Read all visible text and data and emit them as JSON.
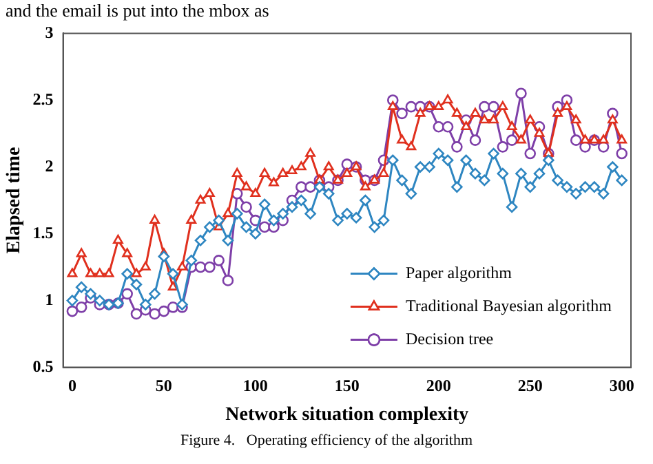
{
  "chart_data": {
    "type": "line",
    "xlabel": "Network situation complexity",
    "ylabel": "Elapsed time",
    "annotations": [
      "and the email is put into the mbox as",
      "Figure 4.   Operating efficiency of the algorithm"
    ],
    "x": [
      0,
      5,
      10,
      15,
      20,
      25,
      30,
      35,
      40,
      45,
      50,
      55,
      60,
      65,
      70,
      75,
      80,
      85,
      90,
      95,
      100,
      105,
      110,
      115,
      120,
      125,
      130,
      135,
      140,
      145,
      150,
      155,
      160,
      165,
      170,
      175,
      180,
      185,
      190,
      195,
      200,
      205,
      210,
      215,
      220,
      225,
      230,
      235,
      240,
      245,
      250,
      255,
      260,
      265,
      270,
      275,
      280,
      285,
      290,
      295,
      300
    ],
    "series": [
      {
        "name": "Paper algorithm",
        "color": "#2e86c1",
        "marker": "diamond",
        "values": [
          1.0,
          1.1,
          1.05,
          1.0,
          0.97,
          0.98,
          1.2,
          1.12,
          0.97,
          1.05,
          1.33,
          1.2,
          0.97,
          1.3,
          1.45,
          1.55,
          1.6,
          1.45,
          1.65,
          1.55,
          1.5,
          1.72,
          1.6,
          1.65,
          1.7,
          1.75,
          1.65,
          1.85,
          1.8,
          1.6,
          1.65,
          1.62,
          1.75,
          1.55,
          1.6,
          2.05,
          1.9,
          1.8,
          2.0,
          2.0,
          2.1,
          2.05,
          1.85,
          2.05,
          1.95,
          1.9,
          2.1,
          1.95,
          1.7,
          1.95,
          1.85,
          1.95,
          2.05,
          1.9,
          1.85,
          1.8,
          1.85,
          1.85,
          1.8,
          2.0,
          1.9
        ]
      },
      {
        "name": "Traditional Bayesian algorithm",
        "color": "#e0301e",
        "marker": "triangle",
        "values": [
          1.2,
          1.35,
          1.2,
          1.2,
          1.2,
          1.45,
          1.35,
          1.2,
          1.25,
          1.6,
          1.35,
          1.1,
          1.25,
          1.6,
          1.75,
          1.8,
          1.55,
          1.65,
          1.95,
          1.85,
          1.8,
          1.95,
          1.88,
          1.95,
          1.97,
          2.0,
          2.1,
          1.9,
          2.0,
          1.9,
          1.95,
          2.0,
          1.85,
          1.9,
          1.95,
          2.45,
          2.2,
          2.15,
          2.4,
          2.45,
          2.45,
          2.5,
          2.4,
          2.3,
          2.4,
          2.35,
          2.35,
          2.45,
          2.3,
          2.2,
          2.35,
          2.25,
          2.1,
          2.4,
          2.45,
          2.35,
          2.2,
          2.2,
          2.2,
          2.35,
          2.2
        ]
      },
      {
        "name": "Decision tree",
        "color": "#7e3fa8",
        "marker": "circle",
        "values": [
          0.92,
          0.95,
          1.02,
          0.97,
          0.97,
          0.98,
          1.05,
          0.9,
          0.93,
          0.9,
          0.92,
          0.95,
          0.95,
          1.25,
          1.25,
          1.25,
          1.3,
          1.15,
          1.8,
          1.7,
          1.6,
          1.55,
          1.55,
          1.6,
          1.75,
          1.85,
          1.85,
          1.9,
          1.85,
          1.9,
          2.02,
          2.0,
          1.9,
          1.9,
          2.05,
          2.5,
          2.4,
          2.45,
          2.45,
          2.45,
          2.3,
          2.3,
          2.15,
          2.35,
          2.2,
          2.45,
          2.45,
          2.15,
          2.2,
          2.55,
          2.1,
          2.3,
          2.1,
          2.45,
          2.5,
          2.2,
          2.15,
          2.2,
          2.15,
          2.4,
          2.1
        ]
      }
    ],
    "xlim": [
      -5,
      305
    ],
    "xticks": [
      0,
      50,
      100,
      150,
      200,
      250,
      300
    ],
    "ylim": [
      0.5,
      3
    ],
    "yticks": [
      0.5,
      1,
      1.5,
      2,
      2.5,
      3
    ],
    "grid": false,
    "legend": "bottom right",
    "line_style": "solid"
  }
}
